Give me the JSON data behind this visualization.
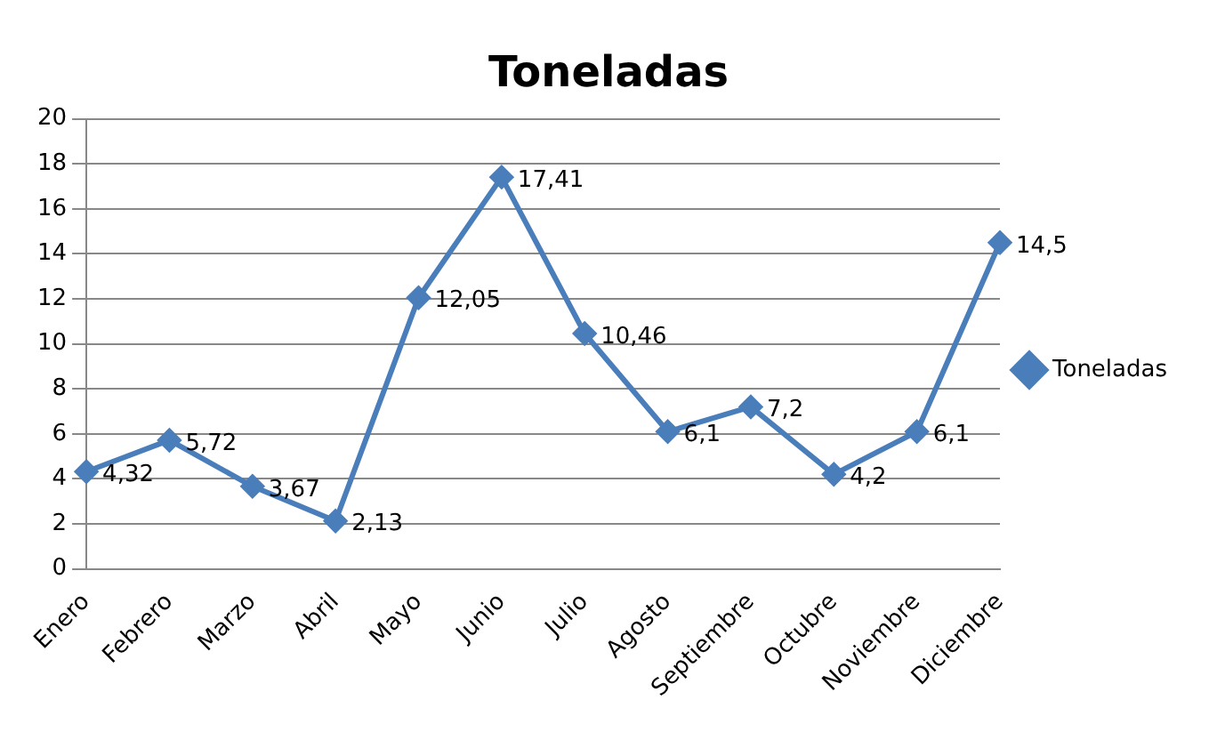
{
  "chart_data": {
    "type": "line",
    "title": "Toneladas",
    "categories": [
      "Enero",
      "Febrero",
      "Marzo",
      "Abril",
      "Mayo",
      "Junio",
      "Julio",
      "Agosto",
      "Septiembre",
      "Octubre",
      "Noviembre",
      "Diciembre"
    ],
    "series": [
      {
        "name": "Toneladas",
        "color": "#4a7ebb",
        "values": [
          4.32,
          5.72,
          3.67,
          2.13,
          12.05,
          17.41,
          10.46,
          6.1,
          7.2,
          4.2,
          6.1,
          14.5
        ],
        "value_labels": [
          "4,32",
          "5,72",
          "3,67",
          "2,13",
          "12,05",
          "17,41",
          "10,46",
          "6,1",
          "7,2",
          "4,2",
          "6,1",
          "14,5"
        ]
      }
    ],
    "ylim": [
      0,
      20
    ],
    "yticks": [
      0,
      2,
      4,
      6,
      8,
      10,
      12,
      14,
      16,
      18,
      20
    ],
    "grid": "y",
    "legend": "right",
    "marker": "diamond",
    "line_style": "solid"
  }
}
